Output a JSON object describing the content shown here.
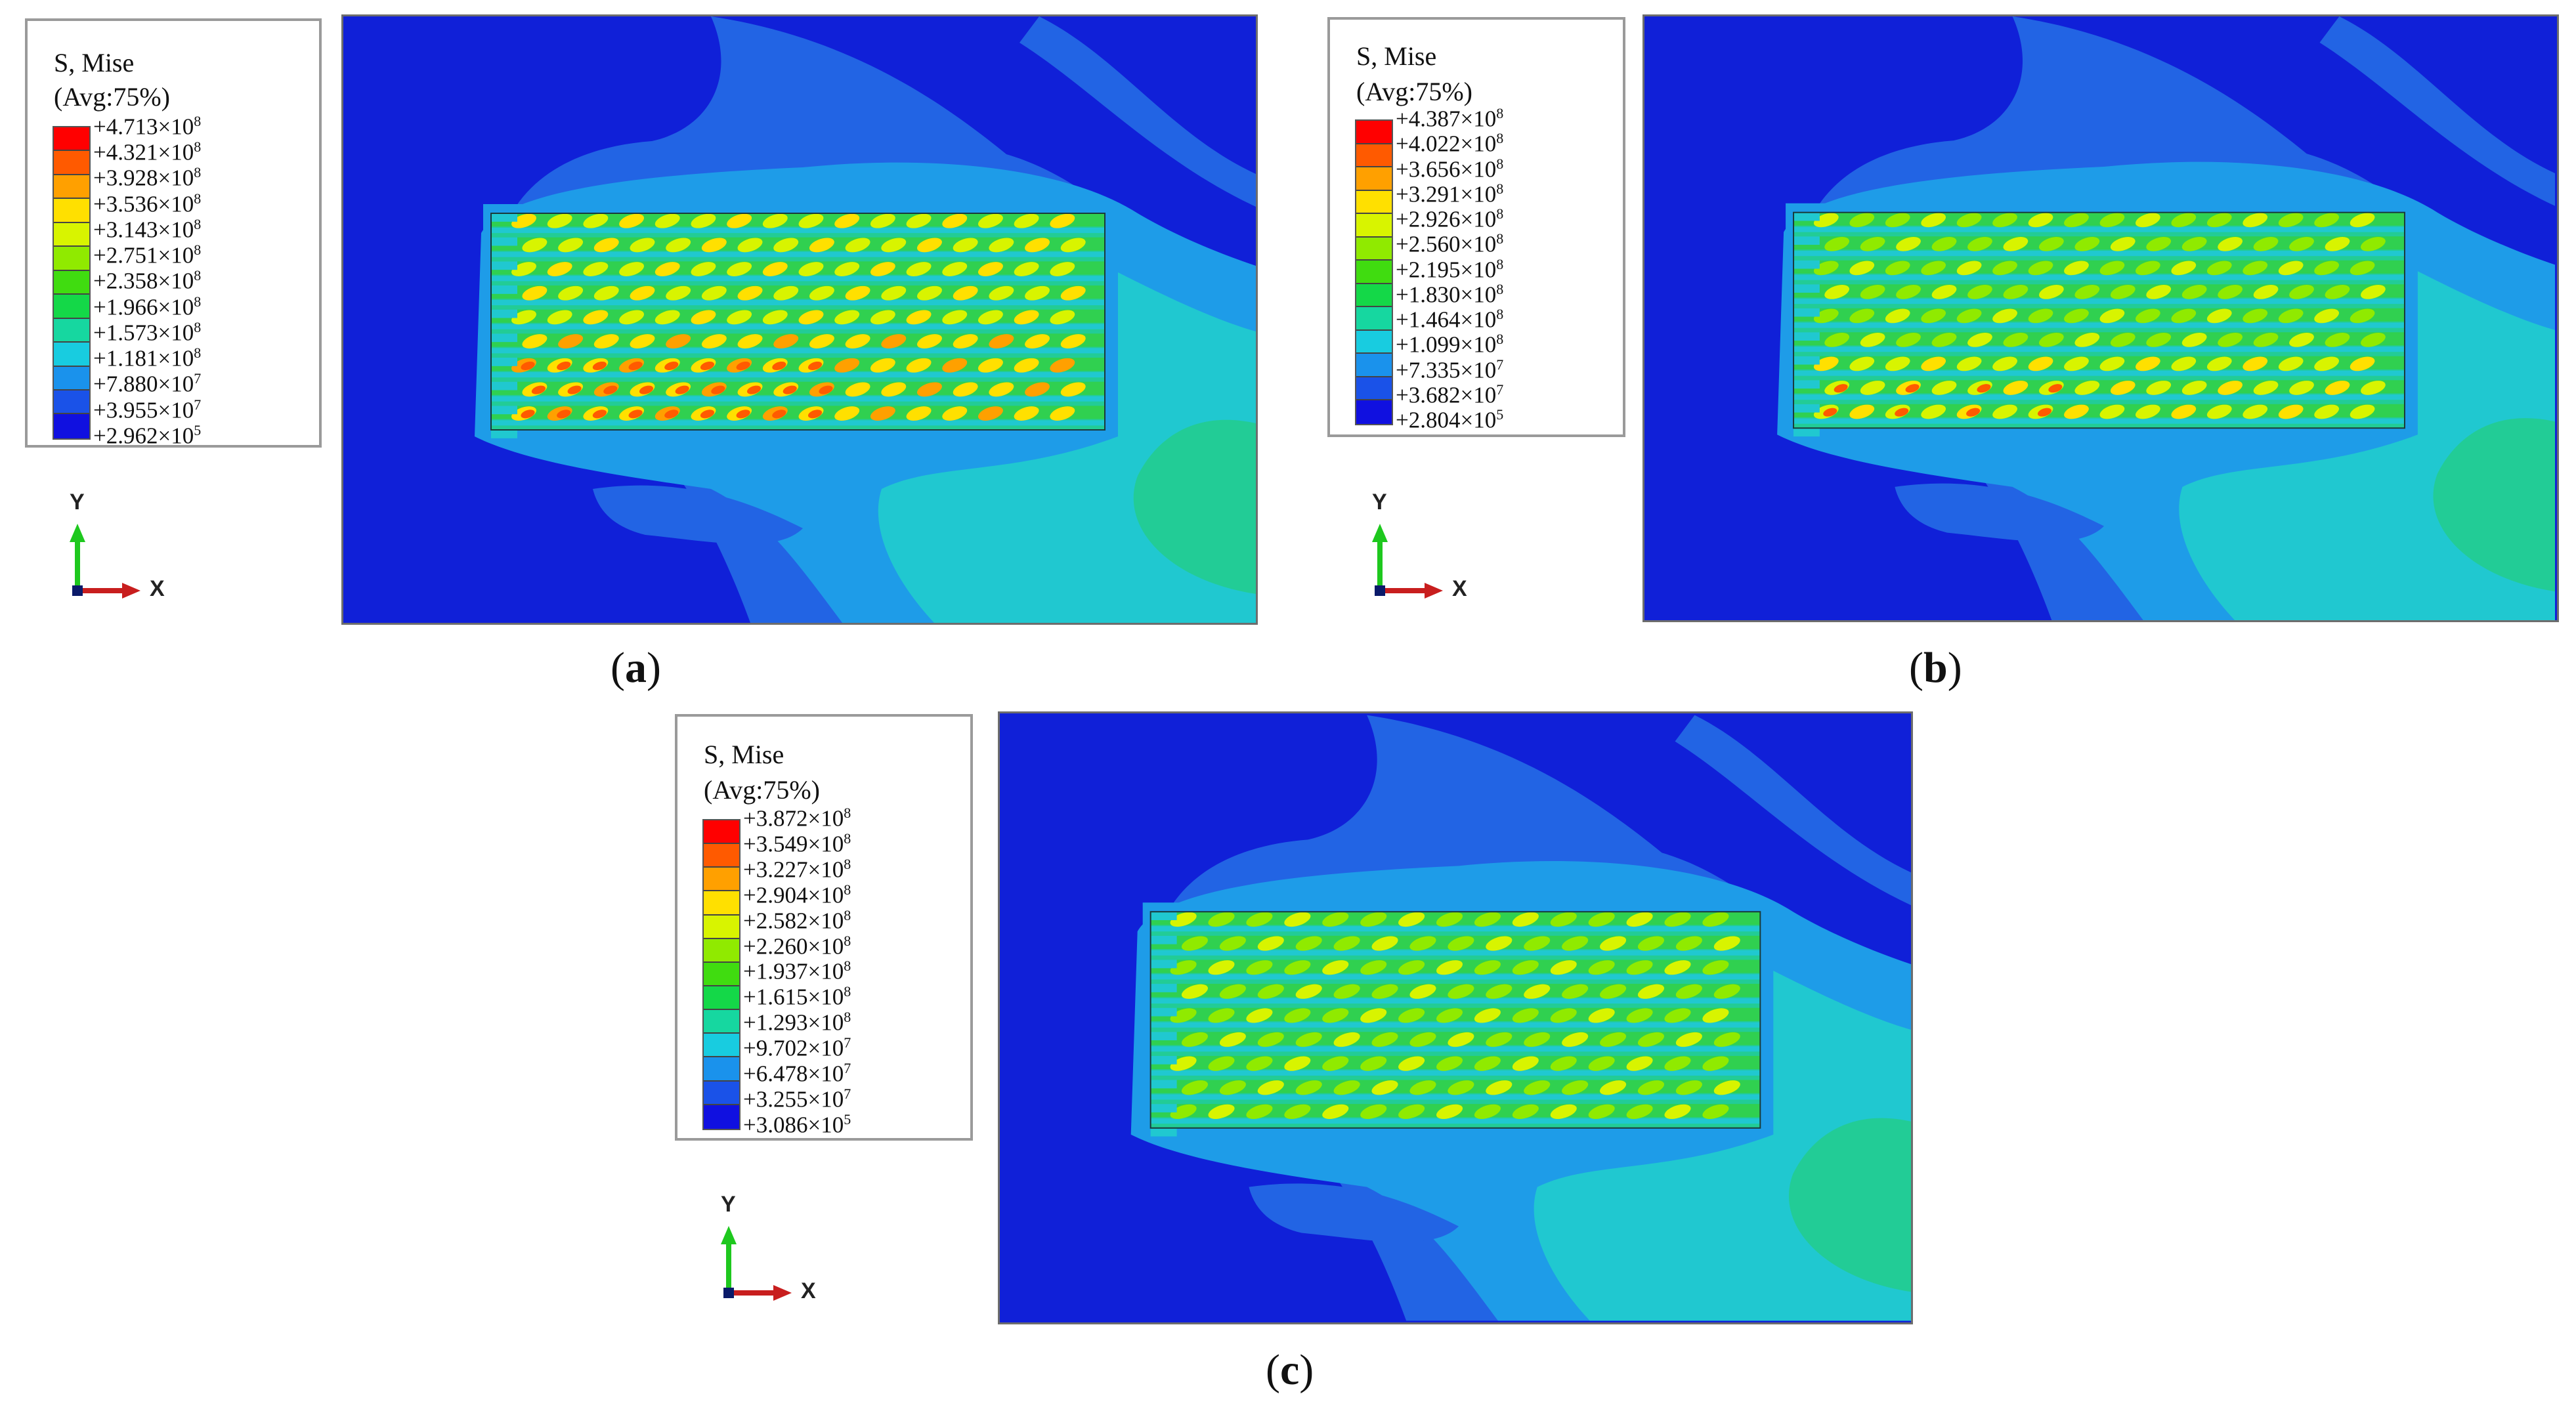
{
  "panels": [
    {
      "id": "a",
      "caption_letter": "a",
      "legend": {
        "title_line1": "S, Mise",
        "title_line2": "(Avg:75%)",
        "values": [
          {
            "mantissa": "+4.713×10",
            "exp": "8"
          },
          {
            "mantissa": "+4.321×10",
            "exp": "8"
          },
          {
            "mantissa": "+3.928×10",
            "exp": "8"
          },
          {
            "mantissa": "+3.536×10",
            "exp": "8"
          },
          {
            "mantissa": "+3.143×10",
            "exp": "8"
          },
          {
            "mantissa": "+2.751×10",
            "exp": "8"
          },
          {
            "mantissa": "+2.358×10",
            "exp": "8"
          },
          {
            "mantissa": "+1.966×10",
            "exp": "8"
          },
          {
            "mantissa": "+1.573×10",
            "exp": "8"
          },
          {
            "mantissa": "+1.181×10",
            "exp": "8"
          },
          {
            "mantissa": "+7.880×10",
            "exp": "7"
          },
          {
            "mantissa": "+3.955×10",
            "exp": "7"
          },
          {
            "mantissa": "+2.962×10",
            "exp": "5"
          }
        ]
      },
      "triad": {
        "y_label": "Y",
        "x_label": "X"
      }
    },
    {
      "id": "b",
      "caption_letter": "b",
      "legend": {
        "title_line1": "S, Mise",
        "title_line2": "(Avg:75%)",
        "values": [
          {
            "mantissa": "+4.387×10",
            "exp": "8"
          },
          {
            "mantissa": "+4.022×10",
            "exp": "8"
          },
          {
            "mantissa": "+3.656×10",
            "exp": "8"
          },
          {
            "mantissa": "+3.291×10",
            "exp": "8"
          },
          {
            "mantissa": "+2.926×10",
            "exp": "8"
          },
          {
            "mantissa": "+2.560×10",
            "exp": "8"
          },
          {
            "mantissa": "+2.195×10",
            "exp": "8"
          },
          {
            "mantissa": "+1.830×10",
            "exp": "8"
          },
          {
            "mantissa": "+1.464×10",
            "exp": "8"
          },
          {
            "mantissa": "+1.099×10",
            "exp": "8"
          },
          {
            "mantissa": "+7.335×10",
            "exp": "7"
          },
          {
            "mantissa": "+3.682×10",
            "exp": "7"
          },
          {
            "mantissa": "+2.804×10",
            "exp": "5"
          }
        ]
      },
      "triad": {
        "y_label": "Y",
        "x_label": "X"
      }
    },
    {
      "id": "c",
      "caption_letter": "c",
      "legend": {
        "title_line1": "S, Mise",
        "title_line2": "(Avg:75%)",
        "values": [
          {
            "mantissa": "+3.872×10",
            "exp": "8"
          },
          {
            "mantissa": "+3.549×10",
            "exp": "8"
          },
          {
            "mantissa": "+3.227×10",
            "exp": "8"
          },
          {
            "mantissa": "+2.904×10",
            "exp": "8"
          },
          {
            "mantissa": "+2.582×10",
            "exp": "8"
          },
          {
            "mantissa": "+2.260×10",
            "exp": "8"
          },
          {
            "mantissa": "+1.937×10",
            "exp": "8"
          },
          {
            "mantissa": "+1.615×10",
            "exp": "8"
          },
          {
            "mantissa": "+1.293×10",
            "exp": "8"
          },
          {
            "mantissa": "+9.702×10",
            "exp": "7"
          },
          {
            "mantissa": "+6.478×10",
            "exp": "7"
          },
          {
            "mantissa": "+3.255×10",
            "exp": "7"
          },
          {
            "mantissa": "+3.086×10",
            "exp": "5"
          }
        ]
      },
      "triad": {
        "y_label": "Y",
        "x_label": "X"
      }
    }
  ],
  "colors": {
    "scale": [
      "#ff0000",
      "#ff5a00",
      "#ffa000",
      "#ffe000",
      "#d8f400",
      "#90ea00",
      "#40dc10",
      "#14d848",
      "#16d7a0",
      "#18cce0",
      "#1a92ec",
      "#1a52e8",
      "#1010e0"
    ],
    "background": "#1020d8",
    "zone_blue": "#2264e4",
    "zone_light_blue": "#1e9ce8",
    "zone_cyan": "#20c8d0",
    "zone_teal": "#22cc96",
    "zone_green": "#30d050",
    "y_axis": "#1ec81e",
    "x_axis": "#c81e1e"
  }
}
